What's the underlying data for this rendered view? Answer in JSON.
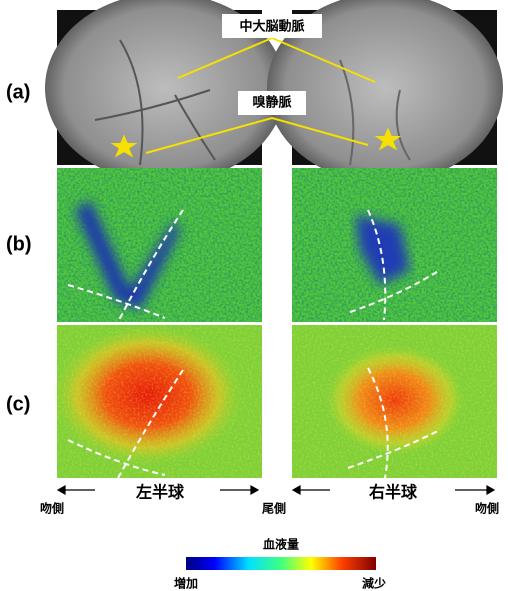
{
  "panel_labels": [
    "(a)",
    "(b)",
    "(c)"
  ],
  "vessel_labels": {
    "mca": "中大脳動脈",
    "olfactory_vein": "嗅静脈"
  },
  "axis": {
    "left_hemisphere": "左半球",
    "right_hemisphere": "右半球",
    "rostral_left": "吻側",
    "caudal": "尾側",
    "rostral_right": "吻側"
  },
  "colorbar": {
    "title": "血液量",
    "low": "増加",
    "high": "減少"
  }
}
